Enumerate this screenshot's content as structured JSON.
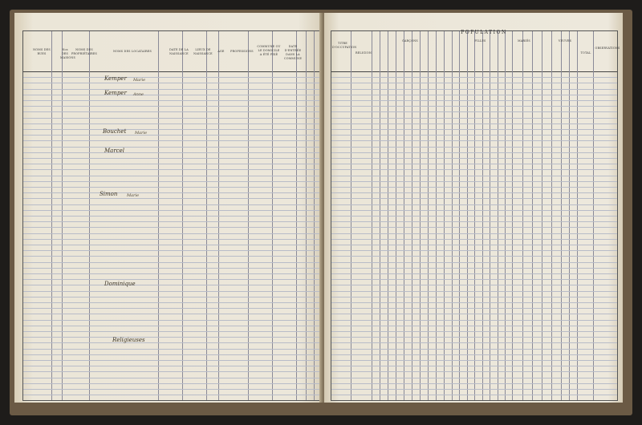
{
  "document": {
    "left_page": {
      "headers": [
        "NOMS DES RUES",
        "Nos DES MAISONS",
        "NOMS DES PROPRIÉTAIRES",
        "NOMS DES LOCATAIRES",
        "DATE DE LA NAISSANCE",
        "LIEUX DE NAISSANCE",
        "AGE",
        "PROFESSIONS",
        "COMMUNE OU LE DOMICILE A ÉTÉ FIXÉ",
        "DATE D'ENTRÉE DANS LA COMMUNE"
      ],
      "entries": [
        {
          "name": "Kemper",
          "given": "Marie"
        },
        {
          "name": "Kemper",
          "given": "Anne"
        },
        {
          "name": "Bouchet",
          "given": "Marie"
        },
        {
          "name": "Marcel",
          "given": ""
        },
        {
          "name": "Simon",
          "given": "Marie"
        },
        {
          "name": "Dominique",
          "given": ""
        },
        {
          "name": "Religieuses",
          "given": ""
        }
      ]
    },
    "right_page": {
      "headers": {
        "title": "TITRE D'OCCUPATION",
        "religion": "RELIGION",
        "population": "POPULATION",
        "boys": "GARÇONS",
        "girls": "FILLES",
        "married": "MARIÉS",
        "widowed": "VEUVES",
        "total": "TOTAL",
        "observations": "OBSERVATIONS"
      }
    }
  }
}
